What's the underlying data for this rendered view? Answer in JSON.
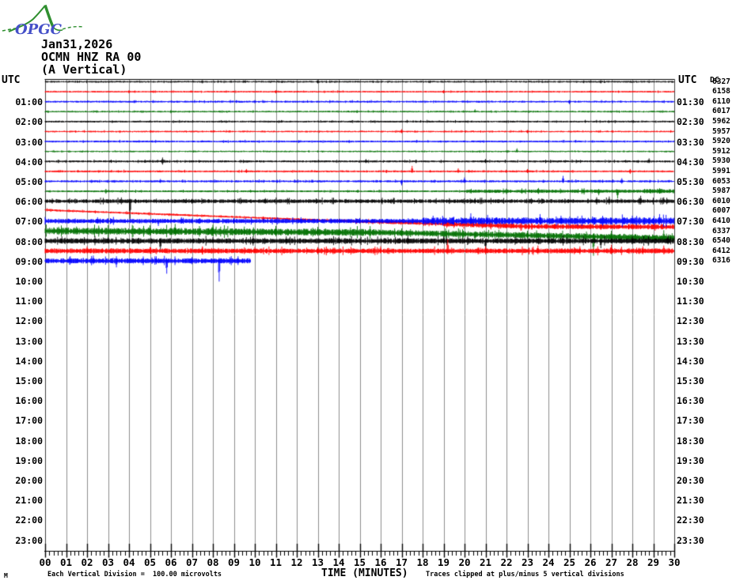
{
  "logo": {
    "text": "OPGC"
  },
  "header": {
    "date_line": "Jan31,2026",
    "station_line": "OCMN HNZ RA 00",
    "component_line": "(A Vertical)"
  },
  "axes": {
    "utc_left": "UTC",
    "utc_right": "UTC",
    "dc_header": "DC",
    "left_labels": [
      "01:00",
      "02:00",
      "03:00",
      "04:00",
      "05:00",
      "06:00",
      "07:00",
      "08:00",
      "09:00",
      "10:00",
      "11:00",
      "12:00",
      "13:00",
      "14:00",
      "15:00",
      "16:00",
      "17:00",
      "18:00",
      "19:00",
      "20:00",
      "21:00",
      "22:00",
      "23:00"
    ],
    "right_labels": [
      "01:30",
      "02:30",
      "03:30",
      "04:30",
      "05:30",
      "06:30",
      "07:30",
      "08:30",
      "09:30",
      "10:30",
      "11:30",
      "12:30",
      "13:30",
      "14:30",
      "15:30",
      "16:30",
      "17:30",
      "18:30",
      "19:30",
      "20:30",
      "21:30",
      "22:30",
      "23:30"
    ],
    "dc_values": [
      "6327",
      "6158",
      "6110",
      "6017",
      "5962",
      "5957",
      "5920",
      "5912",
      "5930",
      "5991",
      "6053",
      "5987",
      "6010",
      "6007",
      "6410",
      "6337",
      "6540",
      "6412",
      "6316"
    ],
    "x_labels": [
      "00",
      "01",
      "02",
      "03",
      "04",
      "05",
      "06",
      "07",
      "08",
      "09",
      "10",
      "11",
      "12",
      "13",
      "14",
      "15",
      "16",
      "17",
      "18",
      "19",
      "20",
      "21",
      "22",
      "23",
      "24",
      "25",
      "26",
      "27",
      "28",
      "29",
      "30"
    ],
    "x_title": "TIME (MINUTES)"
  },
  "footer": {
    "left_note": "Each Vertical Division =  100.00 microvolts",
    "right_note": "Traces clipped at plus/minus 5 vertical divisions",
    "stray_mark": "M"
  },
  "colors": {
    "black": "#000000",
    "red": "#ff0000",
    "blue": "#0000ff",
    "green": "#007000",
    "grid": "#8c8c8c",
    "border": "#404040",
    "axis": "#000000",
    "logo_green": "#2f8f2f",
    "logo_blue": "#4550c8"
  },
  "chart_data": {
    "type": "line",
    "subtype": "helicorder-seismogram",
    "title": "OCMN HNZ RA 00 (A Vertical) Jan31,2026",
    "xlabel": "TIME (MINUTES)",
    "x_range_minutes": [
      0,
      30
    ],
    "minutes_per_row": 30,
    "rows_total": 48,
    "vertical_division_microvolts": 100.0,
    "clip_divisions": 5,
    "color_cycle": [
      "black",
      "red",
      "blue",
      "green"
    ],
    "traces": [
      {
        "start": "00:00",
        "end": "00:30",
        "color": "black",
        "dc": 6327,
        "amp": [
          [
            0,
            0.65
          ]
        ],
        "spikes": [
          [
            7.5,
            2,
            2
          ],
          [
            13,
            2,
            2
          ],
          [
            26.5,
            2,
            2
          ]
        ]
      },
      {
        "start": "00:30",
        "end": "01:00",
        "color": "red",
        "dc": 6158,
        "amp": [
          [
            0,
            0.6
          ]
        ],
        "spikes": [
          [
            4,
            2,
            2
          ],
          [
            11,
            2,
            2
          ],
          [
            19,
            2,
            2
          ]
        ]
      },
      {
        "start": "01:00",
        "end": "01:30",
        "color": "blue",
        "dc": 6110,
        "amp": [
          [
            0,
            0.7
          ]
        ],
        "spikes": [
          [
            10,
            2,
            2
          ],
          [
            25,
            2,
            3
          ]
        ]
      },
      {
        "start": "01:30",
        "end": "02:00",
        "color": "green",
        "dc": 6017,
        "amp": [
          [
            0,
            0.6
          ]
        ],
        "spikes": [
          [
            6,
            2,
            2
          ],
          [
            20.5,
            3,
            1
          ]
        ]
      },
      {
        "start": "02:00",
        "end": "02:30",
        "color": "black",
        "dc": 5962,
        "amp": [
          [
            0,
            0.7
          ]
        ],
        "spikes": []
      },
      {
        "start": "02:30",
        "end": "03:00",
        "color": "red",
        "dc": 5957,
        "amp": [
          [
            0,
            0.6
          ]
        ],
        "spikes": [
          [
            17,
            3,
            2
          ],
          [
            23,
            2,
            2
          ]
        ]
      },
      {
        "start": "03:00",
        "end": "03:30",
        "color": "blue",
        "dc": 5920,
        "amp": [
          [
            0,
            0.7
          ]
        ],
        "spikes": [
          [
            14.5,
            2,
            2
          ]
        ]
      },
      {
        "start": "03:30",
        "end": "04:00",
        "color": "green",
        "dc": 5912,
        "amp": [
          [
            0,
            0.55
          ]
        ],
        "spikes": [
          [
            22.5,
            4,
            1
          ]
        ]
      },
      {
        "start": "04:00",
        "end": "04:30",
        "color": "black",
        "dc": 5930,
        "amp": [
          [
            0,
            0.8
          ]
        ],
        "spikes": [
          [
            5.6,
            5,
            4
          ],
          [
            15.3,
            3,
            2
          ],
          [
            21,
            3,
            2
          ],
          [
            28.8,
            4,
            2
          ]
        ]
      },
      {
        "start": "04:30",
        "end": "05:00",
        "color": "red",
        "dc": 5991,
        "amp": [
          [
            0,
            0.7
          ]
        ],
        "spikes": [
          [
            9.6,
            3,
            2
          ],
          [
            17.5,
            7,
            2
          ],
          [
            19.7,
            4,
            2
          ],
          [
            23,
            3,
            2
          ],
          [
            27.9,
            3,
            3
          ]
        ]
      },
      {
        "start": "05:00",
        "end": "05:30",
        "color": "blue",
        "dc": 6053,
        "amp": [
          [
            0,
            0.8
          ]
        ],
        "spikes": [
          [
            5.5,
            3,
            2
          ],
          [
            17,
            2,
            5
          ],
          [
            20,
            5,
            2
          ],
          [
            24.7,
            7,
            2
          ],
          [
            27.5,
            4,
            3
          ]
        ]
      },
      {
        "start": "05:30",
        "end": "06:00",
        "color": "green",
        "dc": 5987,
        "amp": [
          [
            0,
            0.7
          ],
          [
            20,
            1.4
          ],
          [
            28.5,
            1.8
          ]
        ],
        "spikes": [
          [
            2.9,
            3,
            3
          ],
          [
            25.7,
            4,
            4
          ],
          [
            26.4,
            3,
            5
          ],
          [
            27.3,
            2,
            9
          ],
          [
            29.3,
            4,
            3
          ]
        ]
      },
      {
        "start": "06:00",
        "end": "06:30",
        "color": "black",
        "dc": 6010,
        "amp": [
          [
            0,
            1.6
          ]
        ],
        "spikes": [
          [
            4.05,
            3,
            22
          ],
          [
            7,
            3,
            3
          ],
          [
            10.5,
            4,
            3
          ],
          [
            16.5,
            3,
            3
          ],
          [
            20.5,
            4,
            3
          ],
          [
            26.3,
            5,
            4
          ],
          [
            26.9,
            6,
            4
          ],
          [
            28.4,
            7,
            4
          ],
          [
            29.5,
            5,
            3
          ]
        ]
      },
      {
        "start": "06:30",
        "end": "07:00",
        "color": "red",
        "dc": 6007,
        "amp": [
          [
            0,
            0.8
          ],
          [
            14,
            1.4
          ],
          [
            19,
            2.2
          ]
        ],
        "drift": [
          [
            0,
            -1.5
          ],
          [
            15,
            13
          ],
          [
            23,
            19.5
          ],
          [
            30,
            20
          ]
        ],
        "spikes": [
          [
            10.4,
            2,
            5
          ],
          [
            19.2,
            4,
            3
          ],
          [
            22,
            3,
            3
          ],
          [
            24.3,
            4,
            3
          ],
          [
            26.5,
            3,
            4
          ],
          [
            28,
            4,
            3
          ],
          [
            29.4,
            4,
            3
          ]
        ]
      },
      {
        "start": "07:00",
        "end": "07:30",
        "color": "blue",
        "dc": 6410,
        "amp": [
          [
            0,
            1.9
          ],
          [
            18,
            3.0
          ]
        ],
        "spikes": [
          [
            2.5,
            5,
            3
          ],
          [
            5.4,
            2,
            6
          ],
          [
            6.5,
            5,
            3
          ],
          [
            9,
            4,
            3
          ],
          [
            12.2,
            5,
            3
          ],
          [
            15,
            4,
            3
          ],
          [
            18.5,
            7,
            3
          ],
          [
            20.3,
            10,
            4
          ],
          [
            21.1,
            8,
            4
          ],
          [
            23.6,
            9,
            4
          ],
          [
            24.6,
            7,
            3
          ],
          [
            26.1,
            6,
            3
          ],
          [
            28,
            7,
            3
          ],
          [
            29.3,
            9,
            4
          ]
        ]
      },
      {
        "start": "07:30",
        "end": "08:00",
        "color": "green",
        "dc": 6337,
        "amp": [
          [
            0,
            3.0
          ],
          [
            16,
            2.6
          ]
        ],
        "drift": [
          [
            0,
            0
          ],
          [
            16,
            2
          ],
          [
            30,
            9
          ]
        ],
        "spikes": [
          [
            1.5,
            6,
            4
          ],
          [
            5,
            8,
            5
          ],
          [
            6.2,
            10,
            5
          ],
          [
            8,
            9,
            5
          ],
          [
            9.5,
            7,
            4
          ],
          [
            11,
            8,
            5
          ],
          [
            13,
            7,
            4
          ],
          [
            17,
            6,
            4
          ],
          [
            20.5,
            4,
            8
          ],
          [
            23,
            6,
            4
          ],
          [
            26.15,
            4,
            24
          ],
          [
            27,
            8,
            4
          ],
          [
            29.5,
            10,
            5
          ]
        ]
      },
      {
        "start": "08:00",
        "end": "08:30",
        "color": "black",
        "dc": 6540,
        "amp": [
          [
            0,
            2.3
          ]
        ],
        "spikes": [
          [
            0.8,
            6,
            3
          ],
          [
            3,
            5,
            3
          ],
          [
            5.5,
            3,
            13
          ],
          [
            8,
            5,
            3
          ],
          [
            11.5,
            6,
            4
          ],
          [
            14,
            5,
            3
          ],
          [
            17.3,
            7,
            4
          ],
          [
            19,
            6,
            3
          ],
          [
            21,
            3,
            11
          ],
          [
            24,
            6,
            4
          ],
          [
            26.5,
            3,
            9
          ],
          [
            28,
            6,
            4
          ],
          [
            29.7,
            7,
            4
          ]
        ]
      },
      {
        "start": "08:30",
        "end": "09:00",
        "color": "red",
        "dc": 6412,
        "amp": [
          [
            0,
            2.1
          ]
        ],
        "spikes": [
          [
            2,
            6,
            3
          ],
          [
            5,
            5,
            3
          ],
          [
            7.5,
            6,
            4
          ],
          [
            10,
            5,
            3
          ],
          [
            13,
            5,
            4
          ],
          [
            16,
            6,
            3
          ],
          [
            19.2,
            15,
            4
          ],
          [
            21,
            6,
            4
          ],
          [
            23.5,
            7,
            4
          ],
          [
            25.5,
            6,
            4
          ],
          [
            27,
            8,
            4
          ],
          [
            28.5,
            6,
            4
          ],
          [
            29.5,
            7,
            4
          ]
        ]
      },
      {
        "start": "09:00",
        "end": "09:30",
        "color": "blue",
        "dc": 6316,
        "end_min": 9.8,
        "amp": [
          [
            0,
            2.2
          ]
        ],
        "spikes": [
          [
            1.2,
            6,
            4
          ],
          [
            2.3,
            7,
            4
          ],
          [
            3.4,
            6,
            8
          ],
          [
            5.3,
            6,
            4
          ],
          [
            5.8,
            3,
            16
          ],
          [
            7,
            5,
            4
          ],
          [
            8.3,
            4,
            26
          ],
          [
            9.2,
            6,
            5
          ]
        ]
      }
    ]
  }
}
